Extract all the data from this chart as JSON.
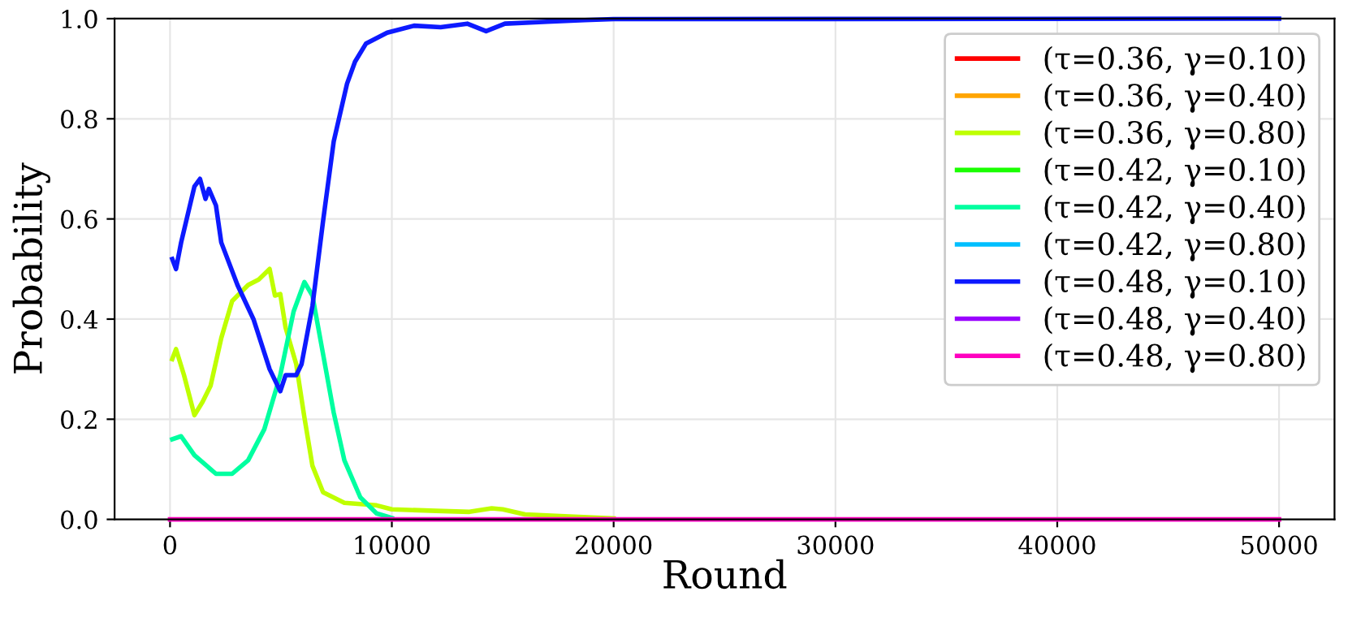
{
  "chart_data": {
    "type": "line",
    "xlabel": "Round",
    "ylabel": "Probability",
    "xlim": [
      -2500,
      52500
    ],
    "ylim": [
      0,
      1
    ],
    "xticks": [
      0,
      10000,
      20000,
      30000,
      40000,
      50000
    ],
    "yticks": [
      {
        "value": 0,
        "label": "0.0"
      },
      0.2,
      0.4,
      0.6,
      0.8,
      {
        "value": 1,
        "label": "1.0"
      }
    ],
    "grid": true,
    "legend": "top right",
    "series": [
      {
        "name": "(τ=0.36, γ=0.10)",
        "color": "#ff0000"
      },
      {
        "name": "(τ=0.36, γ=0.40)",
        "color": "#ffa500"
      },
      {
        "name": "(τ=0.36, γ=0.80)",
        "color": "#bfff00",
        "x": [
          100,
          270,
          630,
          1100,
          1470,
          1830,
          2310,
          2800,
          3520,
          4000,
          4490,
          4730,
          4970,
          5210,
          5690,
          6060,
          6420,
          6900,
          7860,
          9310,
          10000,
          12000,
          13500,
          14500,
          15000,
          16000,
          18000,
          20000
        ],
        "values": [
          0.32,
          0.34,
          0.288,
          0.208,
          0.235,
          0.267,
          0.362,
          0.436,
          0.468,
          0.479,
          0.5,
          0.447,
          0.45,
          0.383,
          0.31,
          0.203,
          0.107,
          0.054,
          0.033,
          0.028,
          0.02,
          0.017,
          0.015,
          0.022,
          0.02,
          0.01,
          0.006,
          0.002
        ]
      },
      {
        "name": "(τ=0.42, γ=0.10)",
        "color": "#1aff00"
      },
      {
        "name": "(τ=0.42, γ=0.40)",
        "color": "#00ffa0",
        "x": [
          100,
          500,
          1100,
          2070,
          2800,
          3520,
          4250,
          4970,
          5570,
          6060,
          6420,
          6900,
          7380,
          7860,
          8580,
          9310,
          10000
        ],
        "values": [
          0.16,
          0.166,
          0.128,
          0.091,
          0.091,
          0.118,
          0.18,
          0.288,
          0.415,
          0.474,
          0.447,
          0.33,
          0.213,
          0.118,
          0.044,
          0.012,
          0.003
        ]
      },
      {
        "name": "(τ=0.42, γ=0.80)",
        "color": "#00bfff"
      },
      {
        "name": "(τ=0.48, γ=0.10)",
        "color": "#0d1aff",
        "x": [
          100,
          270,
          500,
          1100,
          1350,
          1600,
          1750,
          2070,
          2310,
          3040,
          3760,
          4490,
          4970,
          5210,
          5690,
          5930,
          6420,
          6900,
          7380,
          7980,
          8340,
          8830,
          9790,
          11000,
          12200,
          13400,
          14250,
          15100,
          17000,
          18700,
          20000,
          50000
        ],
        "values": [
          0.52,
          0.5,
          0.553,
          0.665,
          0.68,
          0.64,
          0.66,
          0.627,
          0.553,
          0.468,
          0.4,
          0.3,
          0.256,
          0.288,
          0.288,
          0.31,
          0.426,
          0.596,
          0.755,
          0.87,
          0.914,
          0.95,
          0.972,
          0.986,
          0.983,
          0.99,
          0.975,
          0.99,
          0.994,
          0.997,
          0.999,
          1.0
        ]
      },
      {
        "name": "(τ=0.48, γ=0.40)",
        "color": "#9900ff"
      },
      {
        "name": "(τ=0.48, γ=0.80)",
        "color": "#ff00bf",
        "x": [
          0,
          50000
        ],
        "values": [
          0,
          0
        ]
      }
    ]
  }
}
